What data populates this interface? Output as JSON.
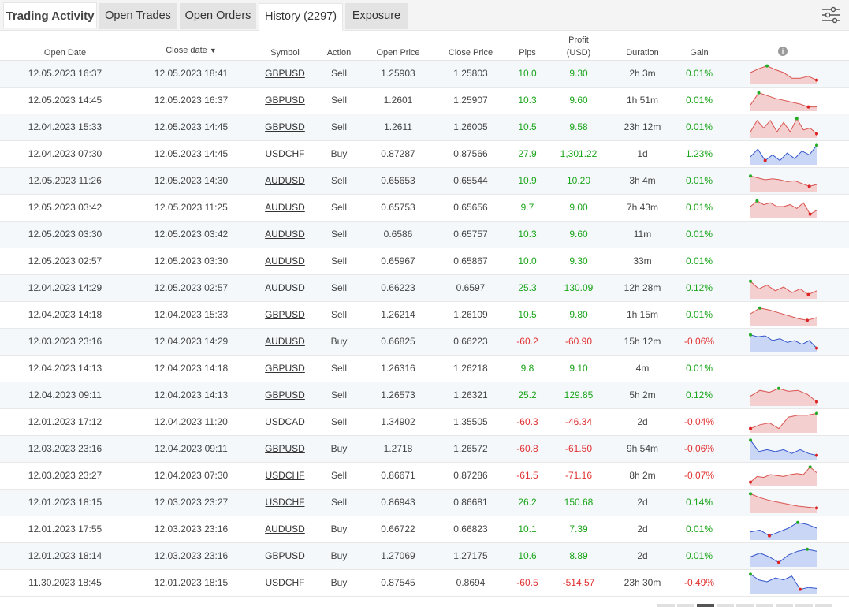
{
  "header": {
    "title": "Trading Activity",
    "tabs": [
      {
        "label": "Open Trades"
      },
      {
        "label": "Open Orders"
      },
      {
        "label": "History (2297)"
      },
      {
        "label": "Exposure"
      }
    ],
    "active_tab": "History (2297)",
    "filter_icon": "sliders-icon"
  },
  "columns": {
    "open_date": "Open Date",
    "close_date": "Close date",
    "sort_arrow": "▼",
    "symbol": "Symbol",
    "action": "Action",
    "open_price": "Open Price",
    "close_price": "Close Price",
    "pips": "Pips",
    "profit_line1": "Profit",
    "profit_line2": "(USD)",
    "duration": "Duration",
    "gain": "Gain",
    "info_icon": "info-icon"
  },
  "colors": {
    "positive": "#1aa51a",
    "negative": "#e03030",
    "sell_chart": "#d9534f",
    "buy_chart": "#3355cc"
  },
  "rows": [
    {
      "open": "12.05.2023 16:37",
      "close": "12.05.2023 18:41",
      "symbol": "GBPUSD",
      "action": "Sell",
      "open_price": "1.25903",
      "close_price": "1.25803",
      "pips": "10.0",
      "profit": "9.30",
      "duration": "2h 3m",
      "gain": "0.01%",
      "sign": "pos",
      "spark": [
        0.5,
        0.3,
        0.15,
        0.35,
        0.5,
        0.8,
        0.8,
        0.7,
        0.9
      ]
    },
    {
      "open": "12.05.2023 14:45",
      "close": "12.05.2023 16:37",
      "symbol": "GBPUSD",
      "action": "Sell",
      "open_price": "1.2601",
      "close_price": "1.25907",
      "pips": "10.3",
      "profit": "9.60",
      "duration": "1h 51m",
      "gain": "0.01%",
      "sign": "pos",
      "spark": [
        0.8,
        0.15,
        0.3,
        0.45,
        0.55,
        0.65,
        0.75,
        0.9,
        0.9
      ]
    },
    {
      "open": "12.04.2023 15:33",
      "close": "12.05.2023 14:45",
      "symbol": "GBPUSD",
      "action": "Sell",
      "open_price": "1.2611",
      "close_price": "1.26005",
      "pips": "10.5",
      "profit": "9.58",
      "duration": "23h 12m",
      "gain": "0.01%",
      "sign": "pos",
      "spark": [
        0.8,
        0.2,
        0.6,
        0.2,
        0.8,
        0.3,
        0.8,
        0.1,
        0.7,
        0.6,
        0.9
      ]
    },
    {
      "open": "12.04.2023 07:30",
      "close": "12.05.2023 14:45",
      "symbol": "USDCHF",
      "action": "Buy",
      "open_price": "0.87287",
      "close_price": "0.87566",
      "pips": "27.9",
      "profit": "1,301.22",
      "duration": "1d",
      "gain": "1.23%",
      "sign": "pos",
      "spark": [
        0.7,
        0.3,
        0.9,
        0.6,
        0.9,
        0.5,
        0.8,
        0.4,
        0.6,
        0.1
      ]
    },
    {
      "open": "12.05.2023 11:26",
      "close": "12.05.2023 14:30",
      "symbol": "AUDUSD",
      "action": "Sell",
      "open_price": "0.65653",
      "close_price": "0.65544",
      "pips": "10.9",
      "profit": "10.20",
      "duration": "3h 4m",
      "gain": "0.01%",
      "sign": "pos",
      "spark": [
        0.3,
        0.4,
        0.5,
        0.45,
        0.5,
        0.6,
        0.55,
        0.7,
        0.85,
        0.75
      ]
    },
    {
      "open": "12.05.2023 03:42",
      "close": "12.05.2023 11:25",
      "symbol": "AUDUSD",
      "action": "Sell",
      "open_price": "0.65753",
      "close_price": "0.65656",
      "pips": "9.7",
      "profit": "9.00",
      "duration": "7h 43m",
      "gain": "0.01%",
      "sign": "pos",
      "spark": [
        0.5,
        0.2,
        0.4,
        0.3,
        0.5,
        0.5,
        0.4,
        0.6,
        0.3,
        0.9,
        0.7
      ]
    },
    {
      "open": "12.05.2023 03:30",
      "close": "12.05.2023 03:42",
      "symbol": "AUDUSD",
      "action": "Sell",
      "open_price": "0.6586",
      "close_price": "0.65757",
      "pips": "10.3",
      "profit": "9.60",
      "duration": "11m",
      "gain": "0.01%",
      "sign": "pos",
      "spark": []
    },
    {
      "open": "12.05.2023 02:57",
      "close": "12.05.2023 03:30",
      "symbol": "AUDUSD",
      "action": "Sell",
      "open_price": "0.65967",
      "close_price": "0.65867",
      "pips": "10.0",
      "profit": "9.30",
      "duration": "33m",
      "gain": "0.01%",
      "sign": "pos",
      "spark": []
    },
    {
      "open": "12.04.2023 14:29",
      "close": "12.05.2023 02:57",
      "symbol": "AUDUSD",
      "action": "Sell",
      "open_price": "0.66223",
      "close_price": "0.6597",
      "pips": "25.3",
      "profit": "130.09",
      "duration": "12h 28m",
      "gain": "0.12%",
      "sign": "pos",
      "spark": [
        0.2,
        0.6,
        0.4,
        0.7,
        0.5,
        0.8,
        0.6,
        0.9,
        0.7
      ]
    },
    {
      "open": "12.04.2023 14:18",
      "close": "12.04.2023 15:33",
      "symbol": "GBPUSD",
      "action": "Sell",
      "open_price": "1.26214",
      "close_price": "1.26109",
      "pips": "10.5",
      "profit": "9.80",
      "duration": "1h 15m",
      "gain": "0.01%",
      "sign": "pos",
      "spark": [
        0.5,
        0.2,
        0.3,
        0.45,
        0.6,
        0.75,
        0.85,
        0.7
      ]
    },
    {
      "open": "12.03.2023 23:16",
      "close": "12.04.2023 14:29",
      "symbol": "AUDUSD",
      "action": "Buy",
      "open_price": "0.66825",
      "close_price": "0.66223",
      "pips": "-60.2",
      "profit": "-60.90",
      "duration": "15h 12m",
      "gain": "-0.06%",
      "sign": "neg",
      "spark": [
        0.2,
        0.3,
        0.25,
        0.5,
        0.4,
        0.6,
        0.5,
        0.7,
        0.5,
        0.9
      ]
    },
    {
      "open": "12.04.2023 14:13",
      "close": "12.04.2023 14:18",
      "symbol": "GBPUSD",
      "action": "Sell",
      "open_price": "1.26316",
      "close_price": "1.26218",
      "pips": "9.8",
      "profit": "9.10",
      "duration": "4m",
      "gain": "0.01%",
      "sign": "pos",
      "spark": []
    },
    {
      "open": "12.04.2023 09:11",
      "close": "12.04.2023 14:13",
      "symbol": "GBPUSD",
      "action": "Sell",
      "open_price": "1.26573",
      "close_price": "1.26321",
      "pips": "25.2",
      "profit": "129.85",
      "duration": "5h 2m",
      "gain": "0.12%",
      "sign": "pos",
      "spark": [
        0.6,
        0.3,
        0.4,
        0.2,
        0.35,
        0.3,
        0.5,
        0.9
      ]
    },
    {
      "open": "12.01.2023 17:12",
      "close": "12.04.2023 11:20",
      "symbol": "USDCAD",
      "action": "Sell",
      "open_price": "1.34902",
      "close_price": "1.35505",
      "pips": "-60.3",
      "profit": "-46.34",
      "duration": "2d",
      "gain": "-0.04%",
      "sign": "neg",
      "spark": [
        0.9,
        0.7,
        0.6,
        0.9,
        0.3,
        0.2,
        0.2,
        0.1
      ]
    },
    {
      "open": "12.03.2023 23:16",
      "close": "12.04.2023 09:11",
      "symbol": "GBPUSD",
      "action": "Buy",
      "open_price": "1.2718",
      "close_price": "1.26572",
      "pips": "-60.8",
      "profit": "-61.50",
      "duration": "9h 54m",
      "gain": "-0.06%",
      "sign": "neg",
      "spark": [
        0.1,
        0.7,
        0.6,
        0.7,
        0.6,
        0.8,
        0.6,
        0.8,
        0.9
      ]
    },
    {
      "open": "12.03.2023 23:27",
      "close": "12.04.2023 07:30",
      "symbol": "USDCHF",
      "action": "Sell",
      "open_price": "0.86671",
      "close_price": "0.87286",
      "pips": "-61.5",
      "profit": "-71.16",
      "duration": "8h 2m",
      "gain": "-0.07%",
      "sign": "neg",
      "spark": [
        0.9,
        0.6,
        0.65,
        0.5,
        0.55,
        0.6,
        0.5,
        0.45,
        0.5,
        0.1,
        0.4
      ]
    },
    {
      "open": "12.01.2023 18:15",
      "close": "12.03.2023 23:27",
      "symbol": "USDCHF",
      "action": "Sell",
      "open_price": "0.86943",
      "close_price": "0.86681",
      "pips": "26.2",
      "profit": "150.68",
      "duration": "2d",
      "gain": "0.14%",
      "sign": "pos",
      "spark": [
        0.1,
        0.3,
        0.45,
        0.55,
        0.65,
        0.75,
        0.8,
        0.85
      ]
    },
    {
      "open": "12.01.2023 17:55",
      "close": "12.03.2023 23:16",
      "symbol": "AUDUSD",
      "action": "Buy",
      "open_price": "0.66722",
      "close_price": "0.66823",
      "pips": "10.1",
      "profit": "7.39",
      "duration": "2d",
      "gain": "0.01%",
      "sign": "pos",
      "spark": [
        0.7,
        0.6,
        0.9,
        0.7,
        0.5,
        0.2,
        0.3,
        0.5
      ]
    },
    {
      "open": "12.01.2023 18:14",
      "close": "12.03.2023 23:16",
      "symbol": "GBPUSD",
      "action": "Buy",
      "open_price": "1.27069",
      "close_price": "1.27175",
      "pips": "10.6",
      "profit": "8.89",
      "duration": "2d",
      "gain": "0.01%",
      "sign": "pos",
      "spark": [
        0.6,
        0.4,
        0.6,
        0.9,
        0.5,
        0.3,
        0.2,
        0.3
      ]
    },
    {
      "open": "11.30.2023 18:45",
      "close": "12.01.2023 18:15",
      "symbol": "USDCHF",
      "action": "Buy",
      "open_price": "0.87545",
      "close_price": "0.8694",
      "pips": "-60.5",
      "profit": "-514.57",
      "duration": "23h 30m",
      "gain": "-0.49%",
      "sign": "neg",
      "spark": [
        0.1,
        0.4,
        0.5,
        0.3,
        0.4,
        0.2,
        0.9,
        0.8,
        0.85
      ]
    }
  ]
}
